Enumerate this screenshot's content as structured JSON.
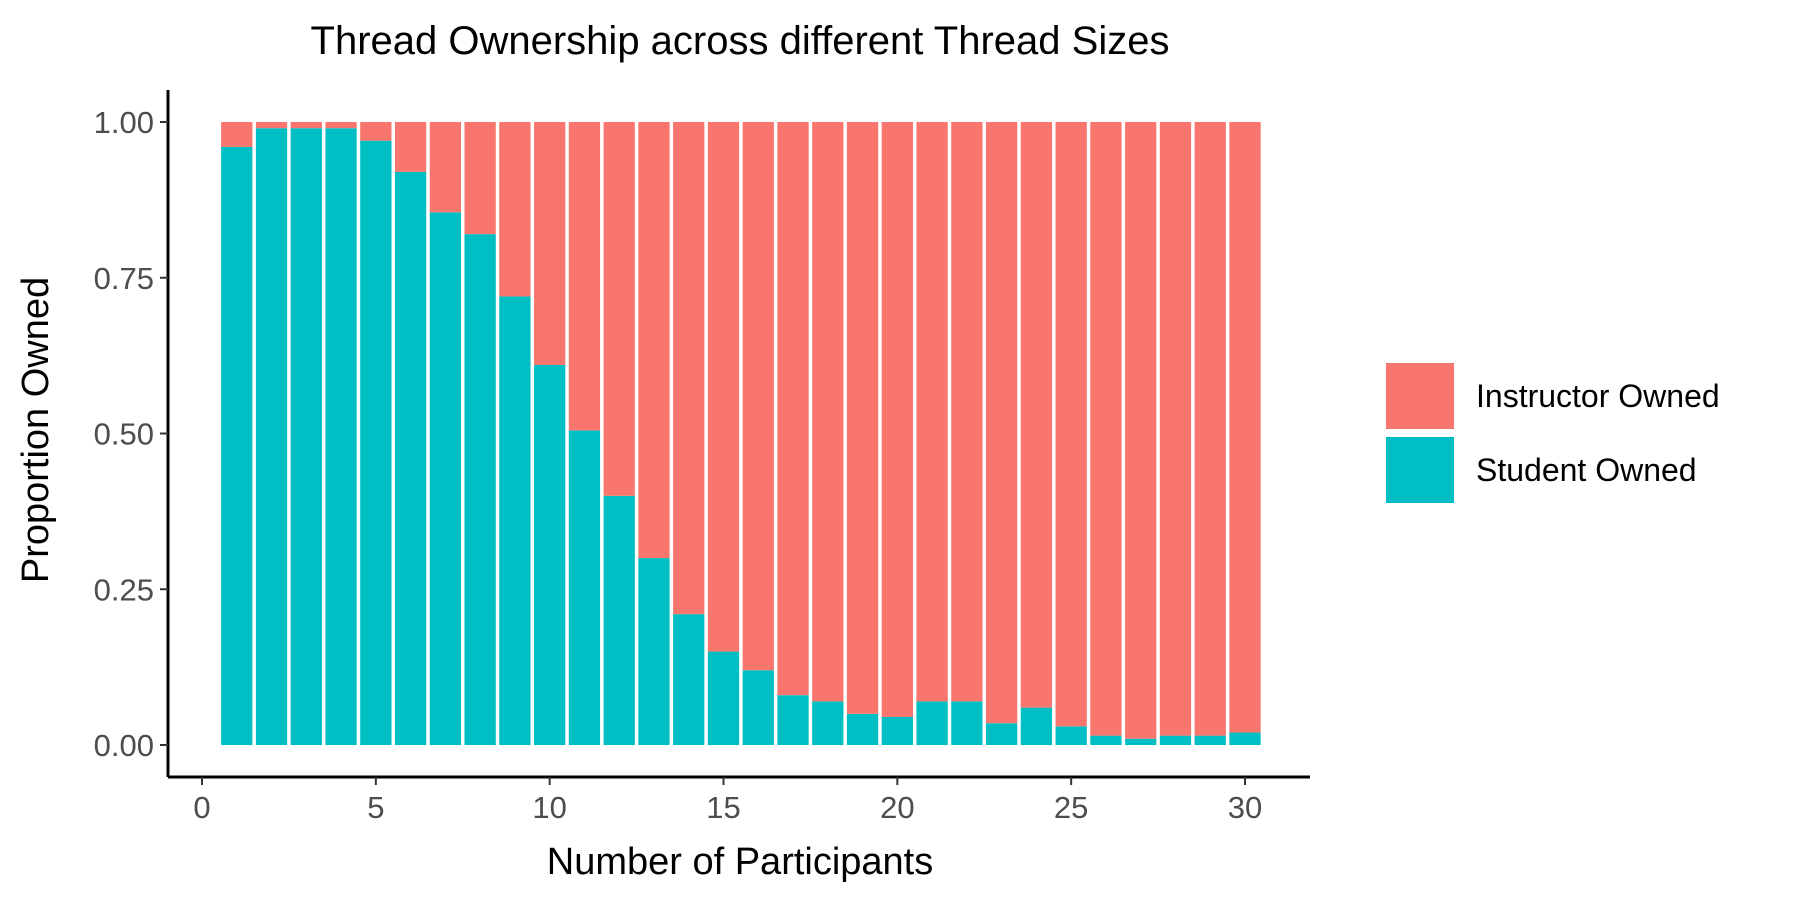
{
  "chart_data": {
    "type": "bar",
    "stacked": true,
    "title": "Thread Ownership across different Thread Sizes",
    "xlabel": "Number of Participants",
    "ylabel": "Proportion Owned",
    "xlim": [
      0,
      31
    ],
    "ylim": [
      0,
      1
    ],
    "x_ticks": [
      0,
      5,
      10,
      15,
      20,
      25,
      30
    ],
    "x_tick_labels": [
      "0",
      "5",
      "10",
      "15",
      "20",
      "25",
      "30"
    ],
    "y_ticks": [
      0,
      0.25,
      0.5,
      0.75,
      1.0
    ],
    "y_tick_labels": [
      "0.00",
      "0.25",
      "0.50",
      "0.75",
      "1.00"
    ],
    "grid": false,
    "legend_position": "right",
    "categories": [
      1,
      2,
      3,
      4,
      5,
      6,
      7,
      8,
      9,
      10,
      11,
      12,
      13,
      14,
      15,
      16,
      17,
      18,
      19,
      20,
      21,
      22,
      23,
      24,
      25,
      26,
      27,
      28,
      29,
      30
    ],
    "series": [
      {
        "name": "Instructor Owned",
        "color": "#F8766D",
        "values": [
          0.04,
          0.01,
          0.01,
          0.01,
          0.03,
          0.08,
          0.145,
          0.18,
          0.28,
          0.39,
          0.495,
          0.6,
          0.7,
          0.79,
          0.85,
          0.88,
          0.92,
          0.93,
          0.95,
          0.955,
          0.93,
          0.93,
          0.965,
          0.94,
          0.97,
          0.985,
          0.99,
          0.985,
          0.985,
          0.98
        ]
      },
      {
        "name": "Student Owned",
        "color": "#00BFC4",
        "values": [
          0.96,
          0.99,
          0.99,
          0.99,
          0.97,
          0.92,
          0.855,
          0.82,
          0.72,
          0.61,
          0.505,
          0.4,
          0.3,
          0.21,
          0.15,
          0.12,
          0.08,
          0.07,
          0.05,
          0.045,
          0.07,
          0.07,
          0.035,
          0.06,
          0.03,
          0.015,
          0.01,
          0.015,
          0.015,
          0.02
        ]
      }
    ]
  }
}
